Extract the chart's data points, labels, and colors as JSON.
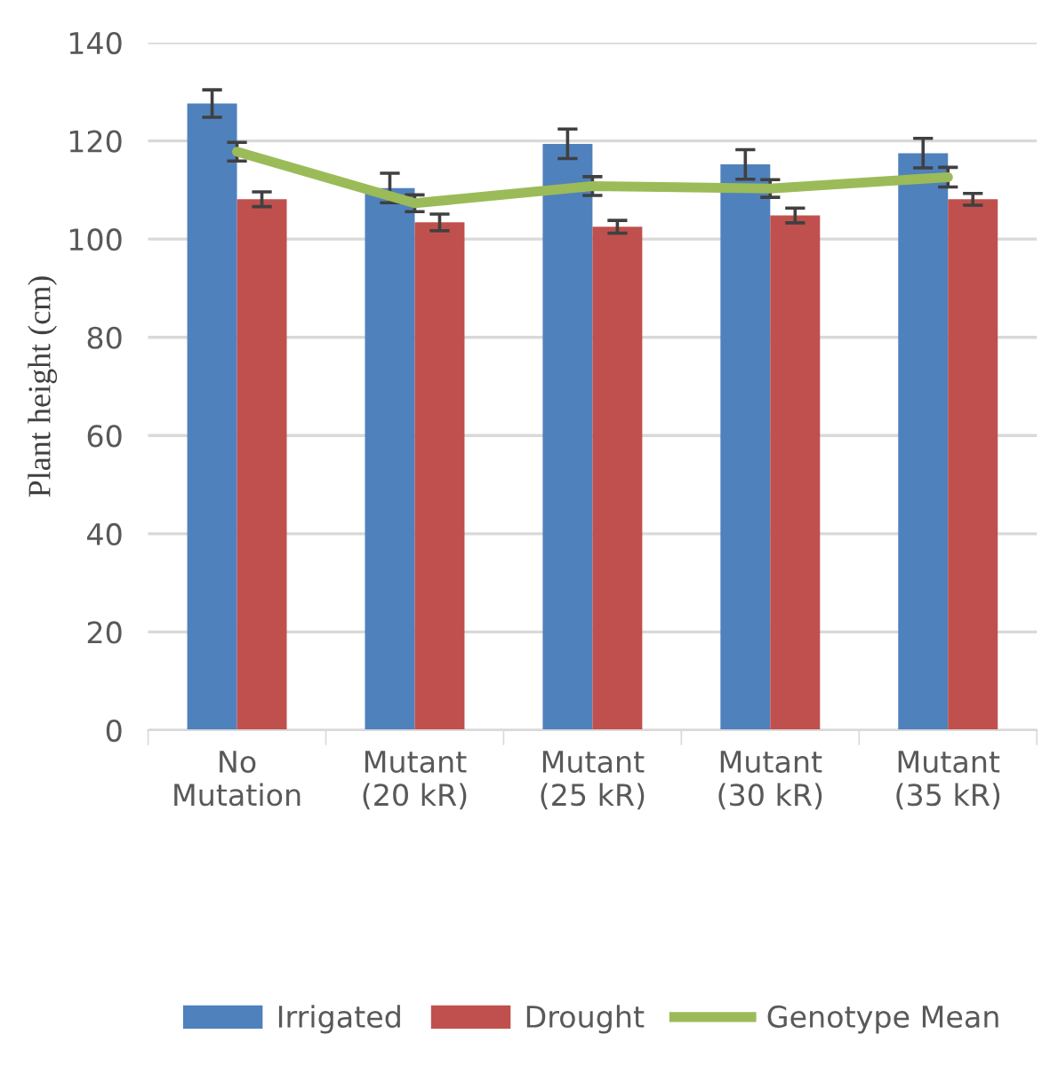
{
  "chart_data": {
    "type": "bar",
    "ylabel": "Plant height (cm)",
    "categories": [
      "No\nMutation",
      "Mutant\n(20 kR)",
      "Mutant\n(25 kR)",
      "Mutant\n(30 kR)",
      "Mutant\n(35 kR)"
    ],
    "series": [
      {
        "name": "Irrigated",
        "color": "#4f81bd",
        "values": [
          127.6,
          110.4,
          119.4,
          115.2,
          117.5
        ],
        "errors": [
          2.8,
          3,
          3,
          3,
          3
        ]
      },
      {
        "name": "Drought",
        "color": "#c0504d",
        "values": [
          108.1,
          103.4,
          102.5,
          104.8,
          108.1
        ],
        "errors": [
          1.5,
          1.7,
          1.3,
          1.5,
          1.2
        ]
      },
      {
        "name": "Genotype Mean",
        "type": "line",
        "color": "#9bbb59",
        "values": [
          117.8,
          107.3,
          110.8,
          110.3,
          112.6
        ],
        "errors": [
          1.9,
          1.7,
          1.9,
          1.8,
          2
        ]
      }
    ],
    "ylim": [
      0,
      140
    ],
    "yticks": [
      0,
      20,
      40,
      60,
      80,
      100,
      120,
      140
    ],
    "grid": "y",
    "legend": "bottom"
  }
}
